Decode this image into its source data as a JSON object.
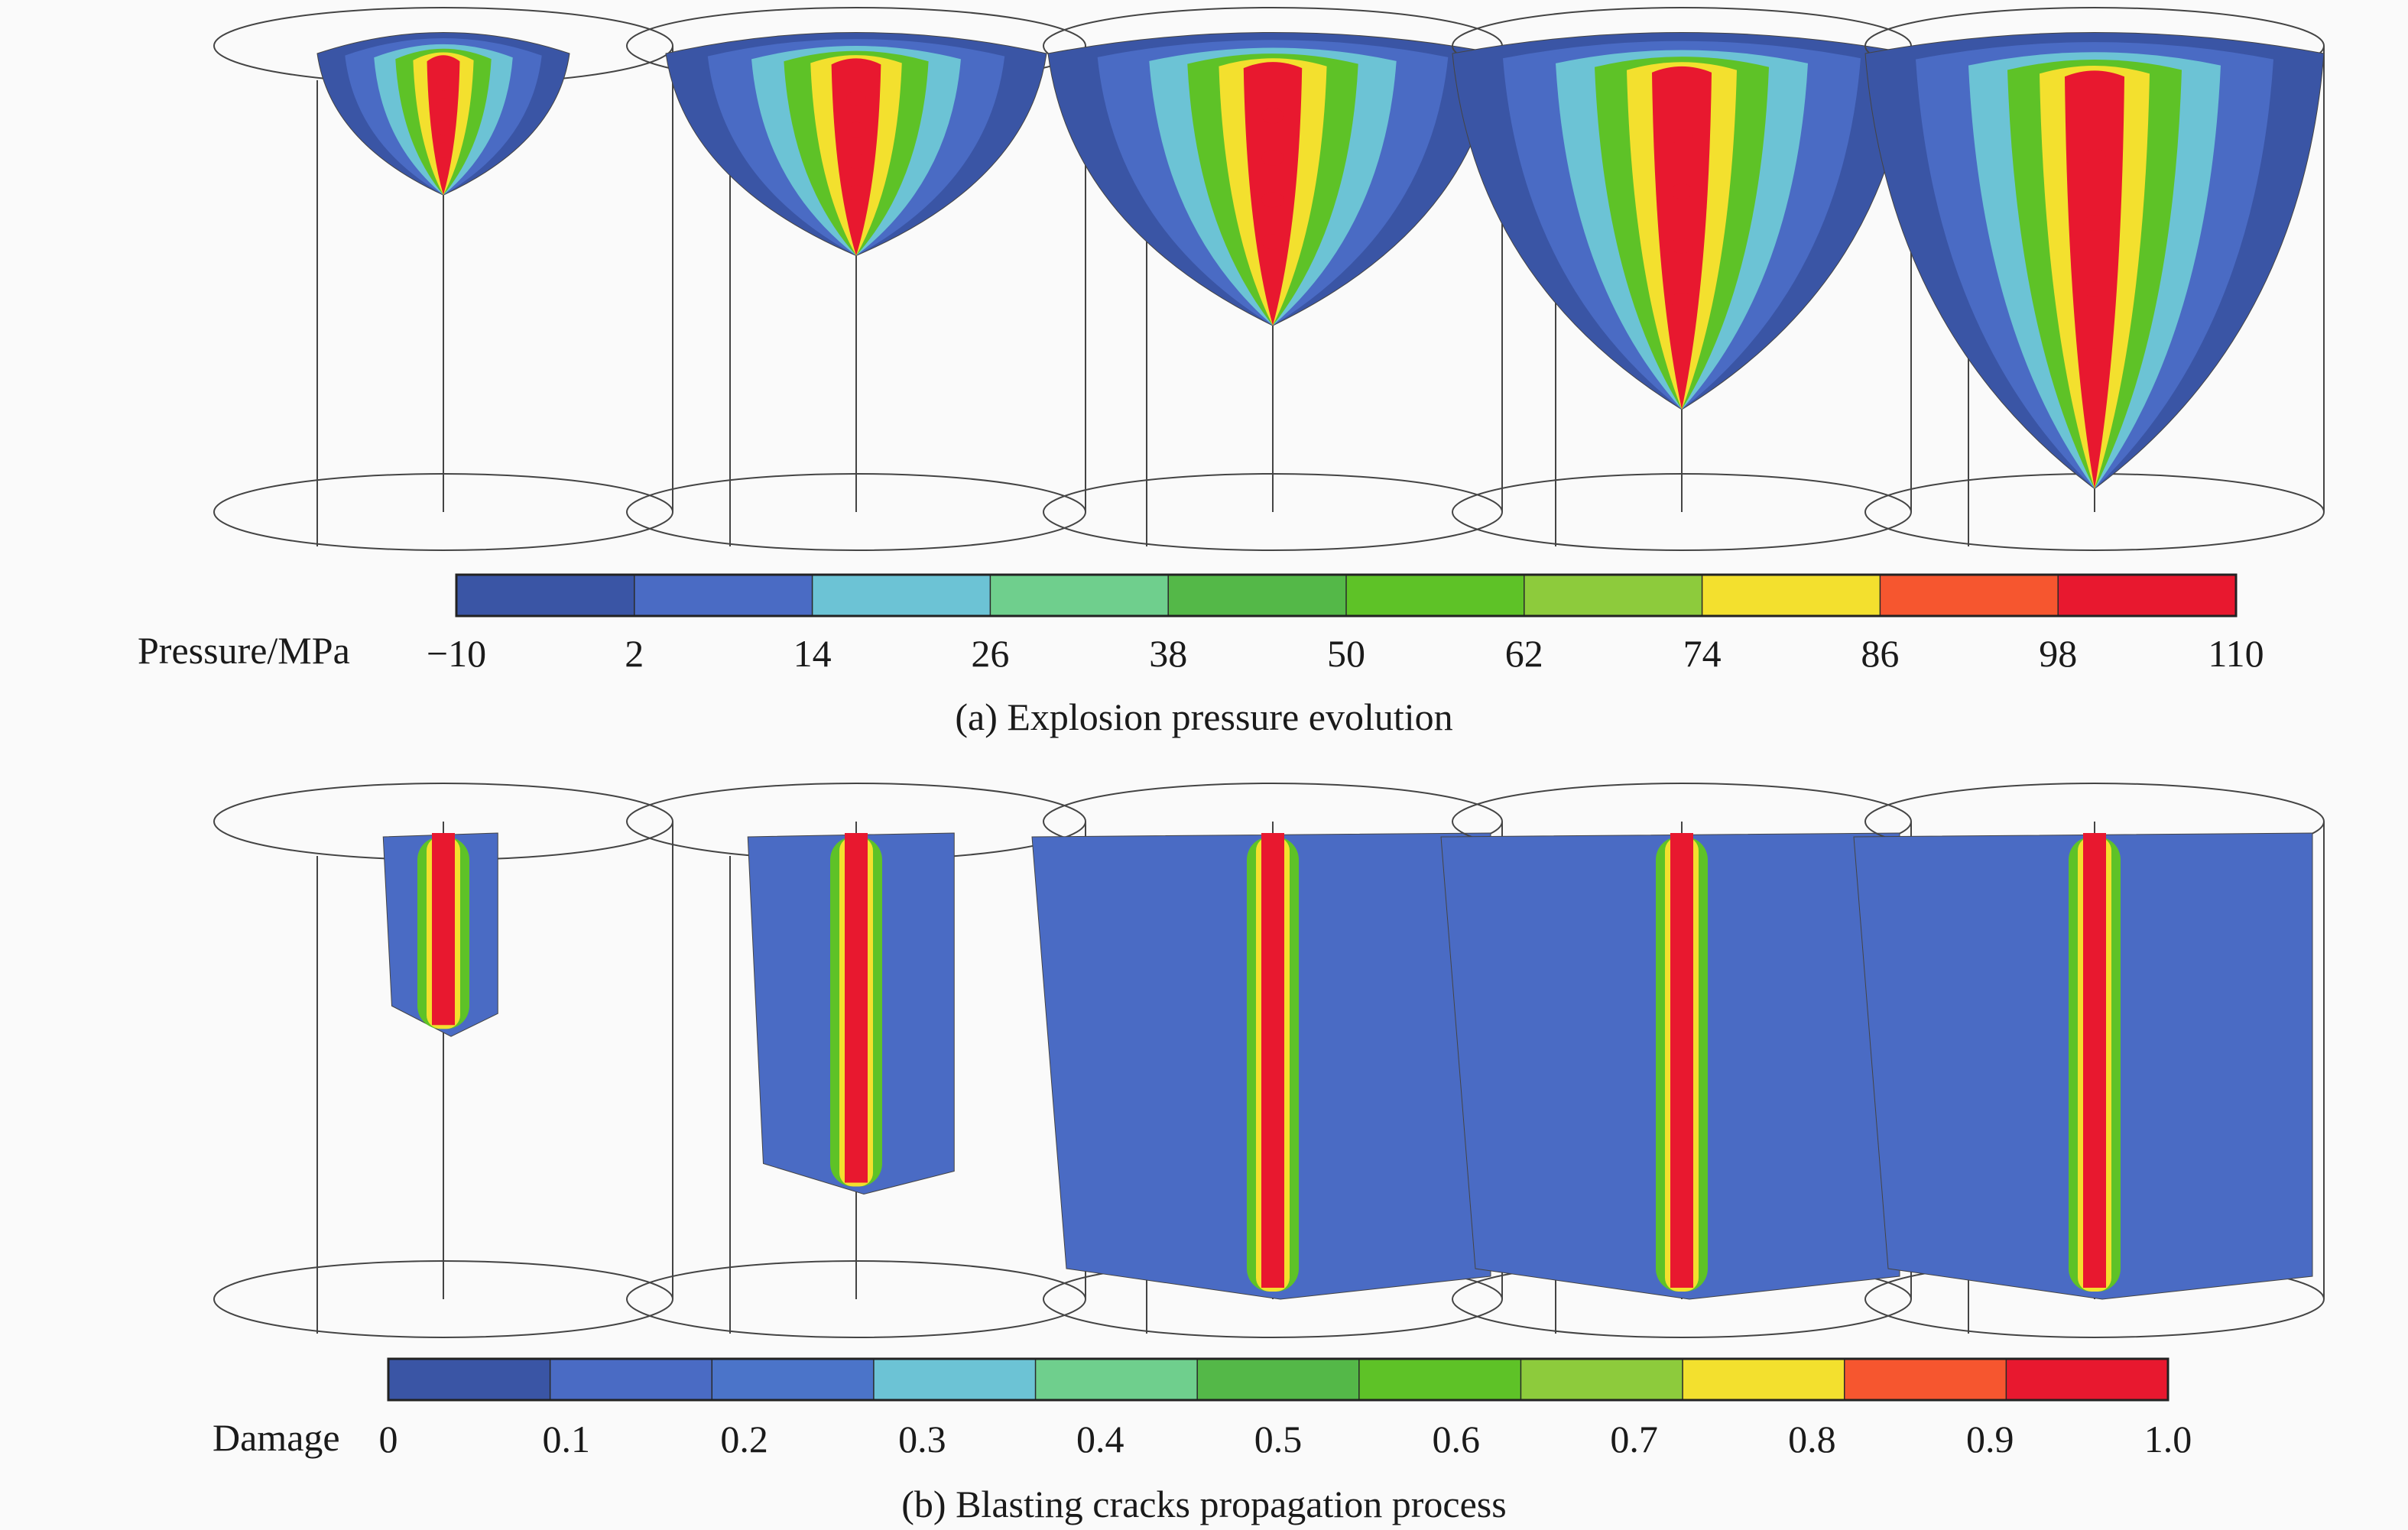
{
  "panel_a": {
    "colorbar": {
      "label": "Pressure/MPa",
      "ticks": [
        "−10",
        "2",
        "14",
        "26",
        "38",
        "50",
        "62",
        "74",
        "86",
        "98",
        "110"
      ],
      "colors": [
        "#3a55a5",
        "#4a6bc4",
        "#6cc3d5",
        "#6fcf8d",
        "#54b848",
        "#5ec227",
        "#8dcb3c",
        "#f3e02e",
        "#f6562f",
        "#e8182f"
      ]
    },
    "caption": "(a) Explosion pressure evolution",
    "stages": [
      {
        "fill_depth": 0.32,
        "width": 0.55
      },
      {
        "fill_depth": 0.45,
        "width": 0.83
      },
      {
        "fill_depth": 0.6,
        "width": 0.98
      },
      {
        "fill_depth": 0.78,
        "width": 1.0
      },
      {
        "fill_depth": 0.95,
        "width": 1.0
      }
    ]
  },
  "panel_b": {
    "colorbar": {
      "label": "Damage",
      "ticks": [
        "0",
        "0.1",
        "0.2",
        "0.3",
        "0.4",
        "0.5",
        "0.6",
        "0.7",
        "0.8",
        "0.9",
        "1.0"
      ],
      "colors": [
        "#3a55a5",
        "#4a6bc4",
        "#4b74c9",
        "#6cc3d5",
        "#6fcf8d",
        "#54b848",
        "#5ec227",
        "#8dcb3c",
        "#f3e02e",
        "#f6562f",
        "#e8182f"
      ]
    },
    "caption": "(b) Blasting cracks propagation process",
    "stages": [
      {
        "fill_depth": 0.45,
        "width": 0.25
      },
      {
        "fill_depth": 0.78,
        "width": 0.45
      },
      {
        "fill_depth": 1.0,
        "width": 1.0
      },
      {
        "fill_depth": 1.0,
        "width": 1.0
      },
      {
        "fill_depth": 1.0,
        "width": 1.0
      }
    ]
  },
  "colors": {
    "blue_dark": "#3a55a5",
    "blue_mid": "#4a6bc4",
    "cyan": "#6cc3d5",
    "green": "#5ec227",
    "yellow": "#f3e02e",
    "red": "#e8182f",
    "outline": "#444444"
  }
}
